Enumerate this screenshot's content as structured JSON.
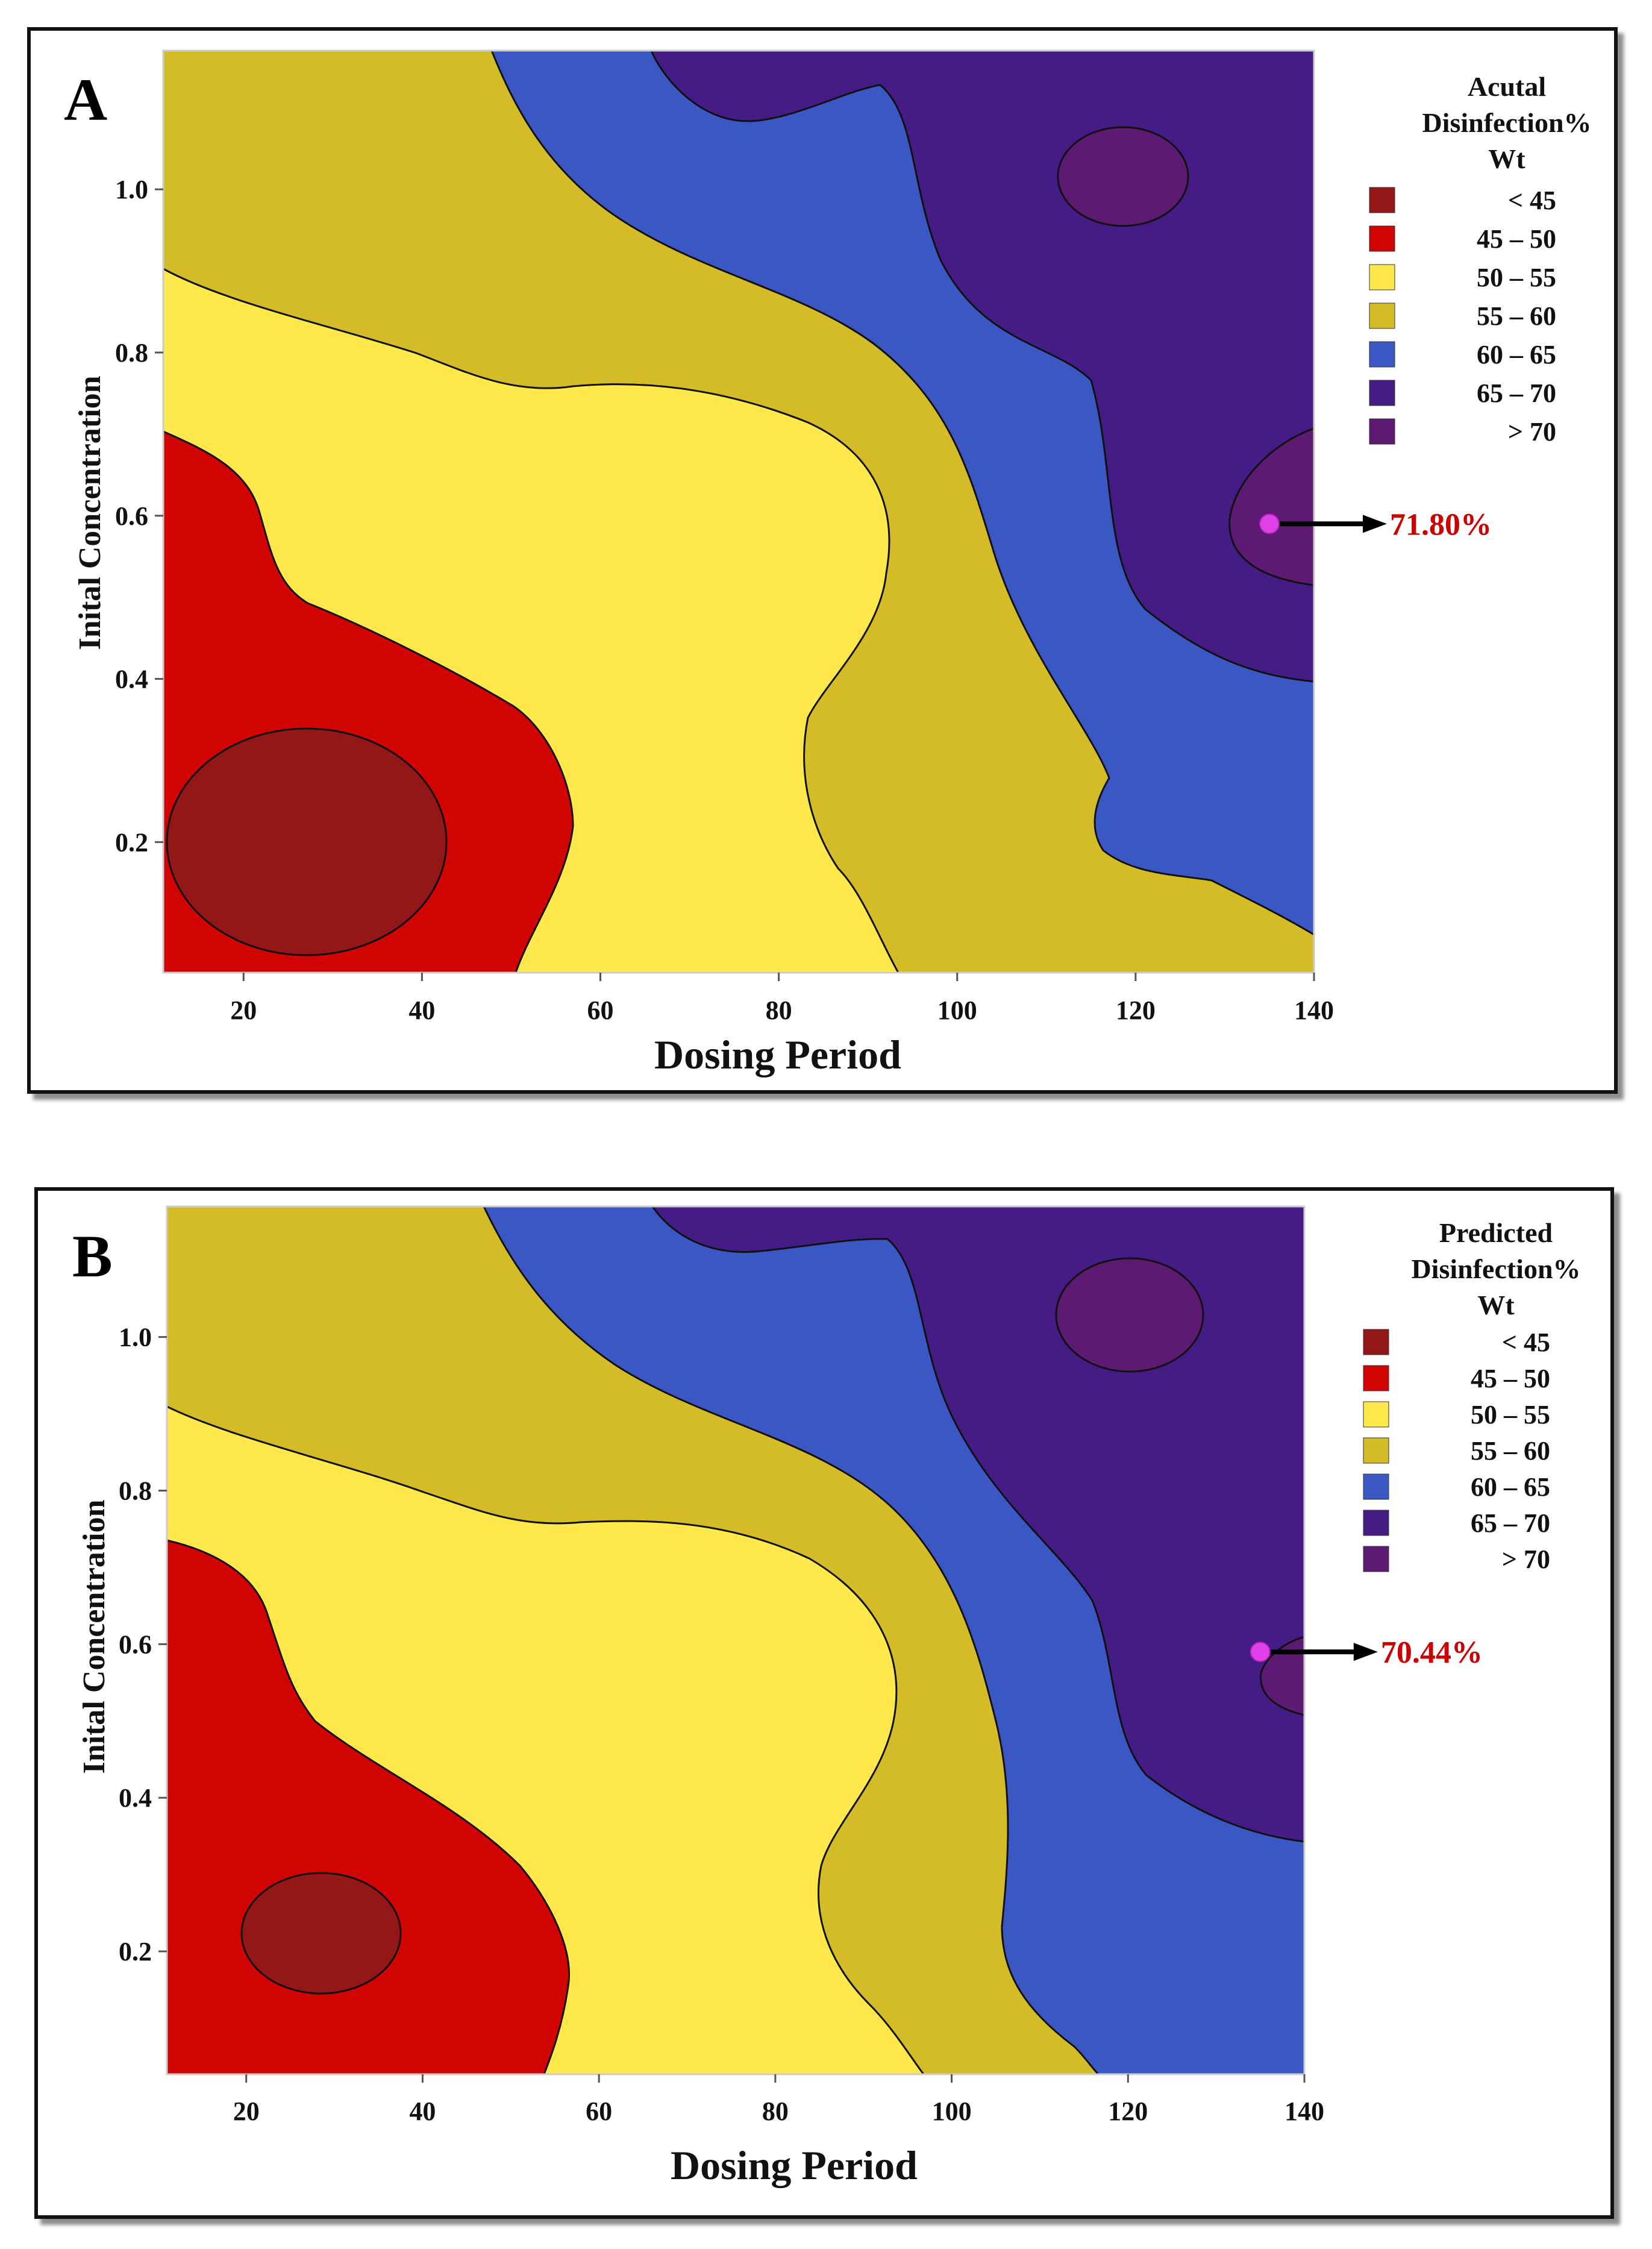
{
  "chart_data": [
    {
      "type": "contour",
      "panel_label": "A",
      "xlabel": "Dosing Period",
      "ylabel": "Inital Concentration",
      "xlim": [
        11,
        140
      ],
      "ylim": [
        0.04,
        1.17
      ],
      "xticks": [
        20,
        40,
        60,
        80,
        100,
        120,
        140
      ],
      "yticks": [
        "0.2",
        "0.4",
        "0.6",
        "0.8",
        "1.0"
      ],
      "legend": {
        "title": [
          "Acutal",
          "Disinfection%",
          "Wt"
        ],
        "placement": "right",
        "levels": [
          {
            "label": "<  45",
            "color": "#931717"
          },
          {
            "label": "45  –  50",
            "color": "#d10303"
          },
          {
            "label": "50  –  55",
            "color": "#ffe84c"
          },
          {
            "label": "55  –  60",
            "color": "#d4bc29"
          },
          {
            "label": "60  –  65",
            "color": "#3a57c3"
          },
          {
            "label": "65  –  70",
            "color": "#451b86"
          },
          {
            "label": ">  70",
            "color": "#5c1a72"
          }
        ]
      },
      "highlight": {
        "x": 135,
        "y": 0.59,
        "label": "71.80%"
      }
    },
    {
      "type": "contour",
      "panel_label": "B",
      "xlabel": "Dosing Period",
      "ylabel": "Inital Concentration",
      "xlim": [
        11,
        140
      ],
      "ylim": [
        0.04,
        1.17
      ],
      "xticks": [
        20,
        40,
        60,
        80,
        100,
        120,
        140
      ],
      "yticks": [
        "0.2",
        "0.4",
        "0.6",
        "0.8",
        "1.0"
      ],
      "legend": {
        "title": [
          "Predicted",
          "Disinfection%",
          "Wt"
        ],
        "placement": "right",
        "levels": [
          {
            "label": "<  45",
            "color": "#931717"
          },
          {
            "label": "45  –  50",
            "color": "#d10303"
          },
          {
            "label": "50  –  55",
            "color": "#ffe84c"
          },
          {
            "label": "55  –  60",
            "color": "#d4bc29"
          },
          {
            "label": "60  –  65",
            "color": "#3a57c3"
          },
          {
            "label": "65  –  70",
            "color": "#451b86"
          },
          {
            "label": ">  70",
            "color": "#5c1a72"
          }
        ]
      },
      "highlight": {
        "x": 135,
        "y": 0.59,
        "label": "70.44%"
      }
    }
  ],
  "colors": {
    "marker": "#e040e8",
    "annotation": "#cc0000",
    "arrow": "#000000"
  }
}
